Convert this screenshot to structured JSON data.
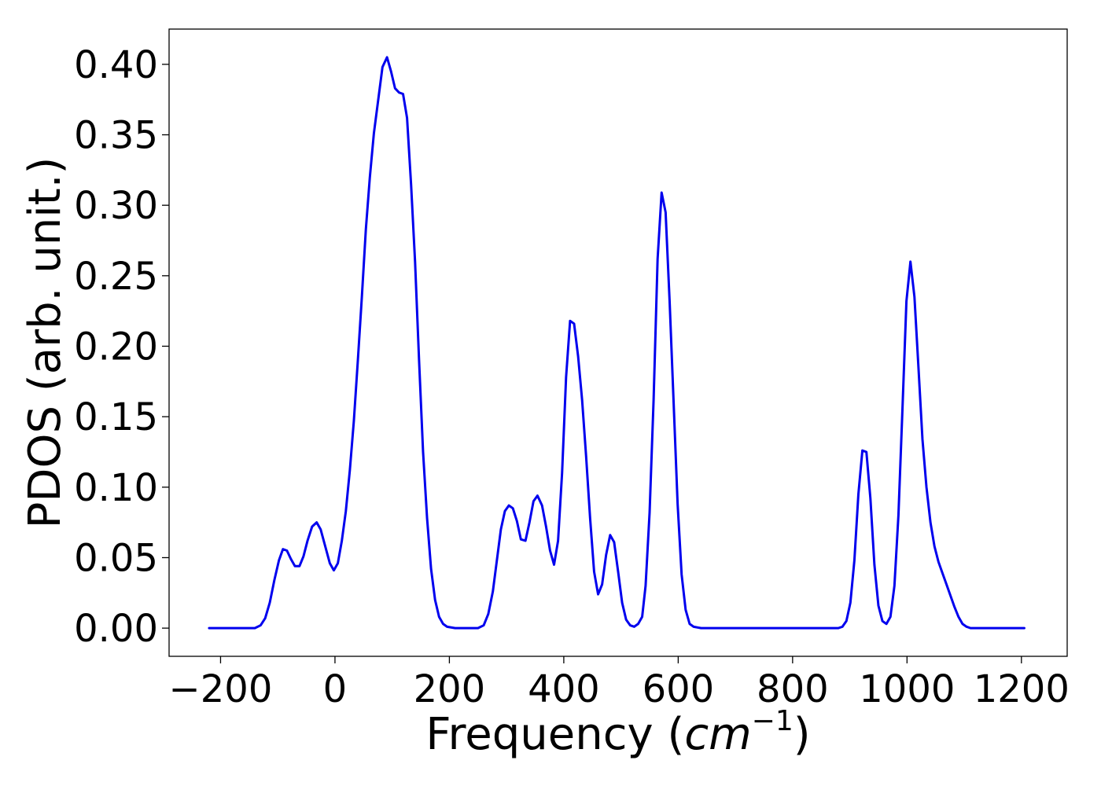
{
  "chart_data": {
    "type": "line",
    "title": "",
    "xlabel_main": "Frequency (",
    "xlabel_unit": "cm",
    "xlabel_exp": "−1",
    "xlabel_close": ")",
    "ylabel": "PDOS (arb. unit.)",
    "xlim": [
      -290,
      1280
    ],
    "ylim": [
      -0.02,
      0.425
    ],
    "x_ticks": [
      -200,
      0,
      200,
      400,
      600,
      800,
      1000,
      1200
    ],
    "x_tick_labels": [
      "−200",
      "0",
      "200",
      "400",
      "600",
      "800",
      "1000",
      "1200"
    ],
    "y_ticks": [
      0.0,
      0.05,
      0.1,
      0.15,
      0.2,
      0.25,
      0.3,
      0.35,
      0.4
    ],
    "y_tick_labels": [
      "0.00",
      "0.05",
      "0.10",
      "0.15",
      "0.20",
      "0.25",
      "0.30",
      "0.35",
      "0.40"
    ],
    "grid": false,
    "legend": "none",
    "series": [
      {
        "color": "#0000ee",
        "points": [
          [
            -220,
            0.0
          ],
          [
            -180,
            0.0
          ],
          [
            -140,
            0.0
          ],
          [
            -130,
            0.002
          ],
          [
            -122,
            0.007
          ],
          [
            -114,
            0.018
          ],
          [
            -106,
            0.034
          ],
          [
            -98,
            0.048
          ],
          [
            -91,
            0.056
          ],
          [
            -84,
            0.055
          ],
          [
            -77,
            0.049
          ],
          [
            -70,
            0.044
          ],
          [
            -62,
            0.044
          ],
          [
            -55,
            0.051
          ],
          [
            -48,
            0.062
          ],
          [
            -40,
            0.072
          ],
          [
            -32,
            0.075
          ],
          [
            -25,
            0.07
          ],
          [
            -17,
            0.058
          ],
          [
            -9,
            0.046
          ],
          [
            -2,
            0.041
          ],
          [
            5,
            0.046
          ],
          [
            12,
            0.062
          ],
          [
            19,
            0.083
          ],
          [
            26,
            0.112
          ],
          [
            33,
            0.147
          ],
          [
            40,
            0.19
          ],
          [
            47,
            0.235
          ],
          [
            54,
            0.283
          ],
          [
            61,
            0.32
          ],
          [
            68,
            0.351
          ],
          [
            76,
            0.376
          ],
          [
            83,
            0.398
          ],
          [
            91,
            0.405
          ],
          [
            98,
            0.395
          ],
          [
            105,
            0.383
          ],
          [
            112,
            0.38
          ],
          [
            119,
            0.379
          ],
          [
            126,
            0.362
          ],
          [
            133,
            0.315
          ],
          [
            140,
            0.26
          ],
          [
            147,
            0.19
          ],
          [
            154,
            0.125
          ],
          [
            161,
            0.078
          ],
          [
            168,
            0.042
          ],
          [
            175,
            0.02
          ],
          [
            182,
            0.008
          ],
          [
            189,
            0.003
          ],
          [
            196,
            0.001
          ],
          [
            210,
            0.0
          ],
          [
            250,
            0.0
          ],
          [
            260,
            0.002
          ],
          [
            268,
            0.01
          ],
          [
            276,
            0.026
          ],
          [
            283,
            0.048
          ],
          [
            290,
            0.07
          ],
          [
            297,
            0.083
          ],
          [
            304,
            0.087
          ],
          [
            311,
            0.085
          ],
          [
            318,
            0.076
          ],
          [
            325,
            0.063
          ],
          [
            333,
            0.062
          ],
          [
            340,
            0.075
          ],
          [
            347,
            0.09
          ],
          [
            354,
            0.094
          ],
          [
            362,
            0.087
          ],
          [
            369,
            0.072
          ],
          [
            376,
            0.055
          ],
          [
            383,
            0.045
          ],
          [
            390,
            0.062
          ],
          [
            397,
            0.11
          ],
          [
            404,
            0.178
          ],
          [
            411,
            0.218
          ],
          [
            418,
            0.216
          ],
          [
            425,
            0.193
          ],
          [
            432,
            0.162
          ],
          [
            439,
            0.122
          ],
          [
            446,
            0.078
          ],
          [
            453,
            0.04
          ],
          [
            460,
            0.024
          ],
          [
            467,
            0.031
          ],
          [
            474,
            0.052
          ],
          [
            481,
            0.066
          ],
          [
            488,
            0.061
          ],
          [
            495,
            0.04
          ],
          [
            502,
            0.018
          ],
          [
            509,
            0.006
          ],
          [
            516,
            0.002
          ],
          [
            523,
            0.001
          ],
          [
            530,
            0.003
          ],
          [
            537,
            0.008
          ],
          [
            543,
            0.03
          ],
          [
            550,
            0.082
          ],
          [
            557,
            0.162
          ],
          [
            564,
            0.262
          ],
          [
            571,
            0.309
          ],
          [
            578,
            0.295
          ],
          [
            585,
            0.232
          ],
          [
            592,
            0.16
          ],
          [
            599,
            0.088
          ],
          [
            606,
            0.038
          ],
          [
            613,
            0.013
          ],
          [
            620,
            0.003
          ],
          [
            627,
            0.001
          ],
          [
            640,
            0.0
          ],
          [
            700,
            0.0
          ],
          [
            800,
            0.0
          ],
          [
            880,
            0.0
          ],
          [
            887,
            0.001
          ],
          [
            894,
            0.005
          ],
          [
            901,
            0.018
          ],
          [
            908,
            0.048
          ],
          [
            915,
            0.095
          ],
          [
            922,
            0.126
          ],
          [
            929,
            0.125
          ],
          [
            936,
            0.092
          ],
          [
            943,
            0.045
          ],
          [
            950,
            0.016
          ],
          [
            957,
            0.005
          ],
          [
            964,
            0.003
          ],
          [
            971,
            0.008
          ],
          [
            978,
            0.03
          ],
          [
            985,
            0.08
          ],
          [
            992,
            0.155
          ],
          [
            999,
            0.232
          ],
          [
            1006,
            0.26
          ],
          [
            1013,
            0.235
          ],
          [
            1020,
            0.185
          ],
          [
            1027,
            0.134
          ],
          [
            1034,
            0.1
          ],
          [
            1041,
            0.075
          ],
          [
            1048,
            0.058
          ],
          [
            1055,
            0.047
          ],
          [
            1062,
            0.039
          ],
          [
            1069,
            0.031
          ],
          [
            1076,
            0.023
          ],
          [
            1083,
            0.015
          ],
          [
            1090,
            0.008
          ],
          [
            1097,
            0.003
          ],
          [
            1104,
            0.001
          ],
          [
            1111,
            0.0
          ],
          [
            1150,
            0.0
          ],
          [
            1205,
            0.0
          ]
        ]
      }
    ]
  }
}
